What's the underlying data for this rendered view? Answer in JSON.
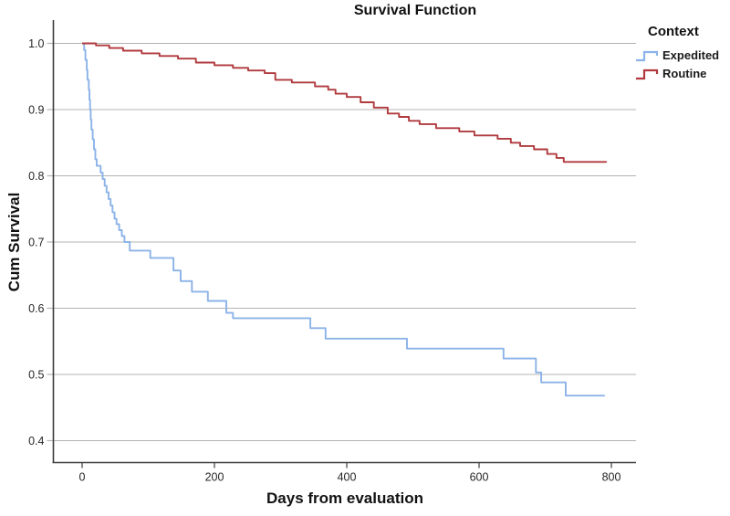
{
  "title": "Survival Function",
  "x_axis": {
    "label": "Days from evaluation"
  },
  "y_axis": {
    "label": "Cum Survival"
  },
  "legend": {
    "title": "Context",
    "items": [
      {
        "label": "Expedited",
        "color": "#8bb3e8"
      },
      {
        "label": "Routine",
        "color": "#b03a3e"
      }
    ]
  },
  "colors": {
    "expedited_line": "#8bb3e8",
    "routine_line": "#b03a3e",
    "gridline": "#b3b3b3",
    "axis_line": "#3c3c3c",
    "tick_text": "#262626",
    "background": "#ffffff"
  },
  "chart_data": {
    "type": "line",
    "subtype": "kaplan-meier-step",
    "title": "Survival Function",
    "xlabel": "Days from evaluation",
    "ylabel": "Cum Survival",
    "x_ticks": [
      0,
      200,
      400,
      600,
      800
    ],
    "y_ticks": [
      1.0,
      0.9,
      0.8,
      0.7,
      0.6,
      0.5,
      0.4
    ],
    "y_tick_labels": [
      "1.0",
      "0.9",
      "0.8",
      "0.7",
      "0.6",
      "0.5",
      "0.4"
    ],
    "xlim": [
      -43,
      837
    ],
    "ylim": [
      0.366,
      1.035
    ],
    "grid": "horizontal",
    "legend_position": "top-right-outside",
    "series": [
      {
        "name": "Expedited",
        "color": "#8bb3e8",
        "points": [
          [
            0,
            1.0
          ],
          [
            3,
            0.99
          ],
          [
            5,
            0.975
          ],
          [
            7,
            0.96
          ],
          [
            8,
            0.945
          ],
          [
            10,
            0.93
          ],
          [
            11,
            0.915
          ],
          [
            12,
            0.9
          ],
          [
            13,
            0.885
          ],
          [
            14,
            0.87
          ],
          [
            16,
            0.855
          ],
          [
            18,
            0.84
          ],
          [
            20,
            0.825
          ],
          [
            22,
            0.815
          ],
          [
            28,
            0.805
          ],
          [
            31,
            0.795
          ],
          [
            34,
            0.785
          ],
          [
            37,
            0.775
          ],
          [
            40,
            0.765
          ],
          [
            43,
            0.755
          ],
          [
            46,
            0.745
          ],
          [
            49,
            0.735
          ],
          [
            52,
            0.727
          ],
          [
            56,
            0.718
          ],
          [
            60,
            0.709
          ],
          [
            64,
            0.7
          ],
          [
            72,
            0.687
          ],
          [
            103,
            0.676
          ],
          [
            138,
            0.657
          ],
          [
            149,
            0.641
          ],
          [
            166,
            0.625
          ],
          [
            190,
            0.611
          ],
          [
            218,
            0.593
          ],
          [
            228,
            0.585
          ],
          [
            345,
            0.57
          ],
          [
            368,
            0.554
          ],
          [
            491,
            0.539
          ],
          [
            637,
            0.524
          ],
          [
            686,
            0.503
          ],
          [
            694,
            0.488
          ],
          [
            731,
            0.468
          ],
          [
            790,
            0.468
          ]
        ]
      },
      {
        "name": "Routine",
        "color": "#b03a3e",
        "points": [
          [
            0,
            1.0
          ],
          [
            21,
            0.997
          ],
          [
            41,
            0.993
          ],
          [
            62,
            0.989
          ],
          [
            90,
            0.985
          ],
          [
            117,
            0.981
          ],
          [
            145,
            0.977
          ],
          [
            172,
            0.971
          ],
          [
            200,
            0.967
          ],
          [
            228,
            0.963
          ],
          [
            251,
            0.959
          ],
          [
            276,
            0.955
          ],
          [
            292,
            0.945
          ],
          [
            317,
            0.941
          ],
          [
            352,
            0.935
          ],
          [
            372,
            0.93
          ],
          [
            383,
            0.924
          ],
          [
            400,
            0.919
          ],
          [
            421,
            0.911
          ],
          [
            441,
            0.903
          ],
          [
            462,
            0.894
          ],
          [
            479,
            0.889
          ],
          [
            494,
            0.883
          ],
          [
            510,
            0.878
          ],
          [
            535,
            0.872
          ],
          [
            570,
            0.867
          ],
          [
            593,
            0.861
          ],
          [
            628,
            0.856
          ],
          [
            648,
            0.85
          ],
          [
            662,
            0.845
          ],
          [
            683,
            0.84
          ],
          [
            703,
            0.833
          ],
          [
            717,
            0.827
          ],
          [
            728,
            0.821
          ],
          [
            792,
            0.82
          ]
        ]
      }
    ]
  }
}
